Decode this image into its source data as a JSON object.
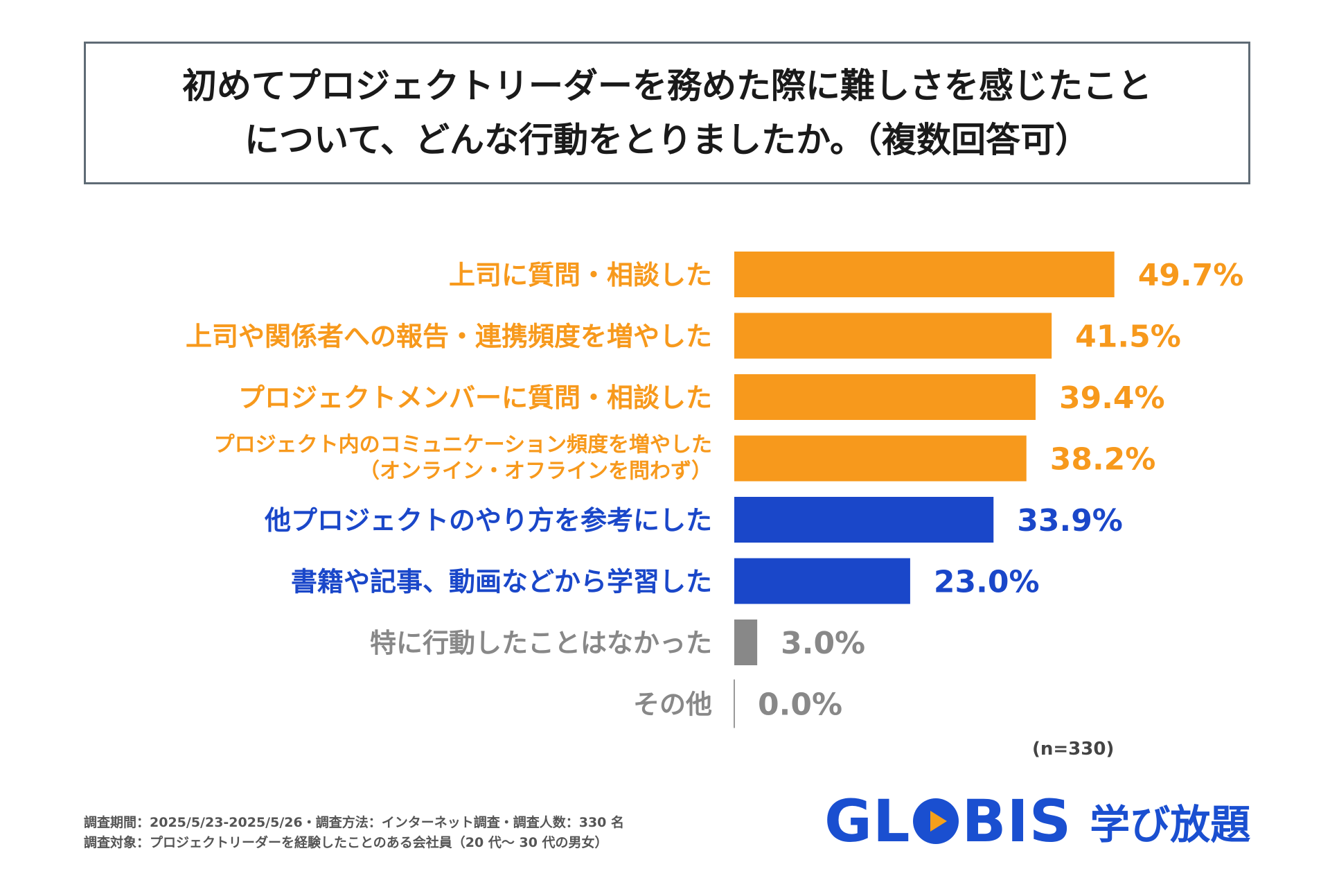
{
  "title": {
    "line1": "初めてプロジェクトリーダーを務めた際に難しさを感じたこと",
    "line2": "について、どんな行動をとりましたか。（複数回答可）"
  },
  "chart_data": {
    "type": "bar",
    "orientation": "horizontal",
    "categories": [
      [
        "上司に質問・相談した"
      ],
      [
        "上司や関係者への報告・連携頻度を増やした"
      ],
      [
        "プロジェクトメンバーに質問・相談した"
      ],
      [
        "プロジェクト内のコミュニケーション頻度を増やした",
        "（オンライン・オフラインを問わず）"
      ],
      [
        "他プロジェクトのやり方を参考にした"
      ],
      [
        "書籍や記事、動画などから学習した"
      ],
      [
        "特に行動したことはなかった"
      ],
      [
        "その他"
      ]
    ],
    "values": [
      49.7,
      41.5,
      39.4,
      38.2,
      33.9,
      23.0,
      3.0,
      0.0
    ],
    "value_labels": [
      "49.7%",
      "41.5%",
      "39.4%",
      "38.2%",
      "33.9%",
      "23.0%",
      "3.0%",
      "0.0%"
    ],
    "colors": [
      "#f7991c",
      "#f7991c",
      "#f7991c",
      "#f7991c",
      "#1a47c9",
      "#1a47c9",
      "#888888",
      "#888888"
    ],
    "xlim": [
      0,
      50
    ],
    "note": "(n=330)"
  },
  "footnotes": {
    "line1": "調査期間：2025/5/23-2025/5/26・調査方法：インターネット調査・調査人数：330 名",
    "line2": "調査対象：プロジェクトリーダーを経験したことのある会社員（20 代～ 30 代の男女）"
  },
  "logo": {
    "word_before": "GL",
    "word_after": "BIS",
    "subtitle": "学び放題",
    "brand_color": "#1a4fd0",
    "accent_color": "#f5a01a"
  }
}
